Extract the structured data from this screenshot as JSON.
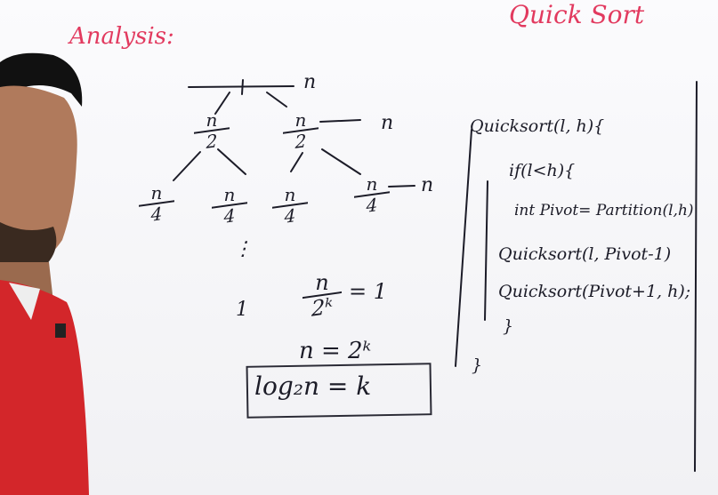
{
  "headings": {
    "analysis": "Analysis:",
    "quick_sort": "Quick Sort"
  },
  "tree": {
    "root": "n",
    "right_cost_1": "n",
    "right_cost_2": "n",
    "level1": [
      {
        "num": "n",
        "den": "2"
      },
      {
        "num": "n",
        "den": "2"
      }
    ],
    "level2": [
      {
        "num": "n",
        "den": "4"
      },
      {
        "num": "n",
        "den": "4"
      },
      {
        "num": "n",
        "den": "4"
      },
      {
        "num": "n",
        "den": "4"
      }
    ],
    "ellipsis": "⋮",
    "leaf": "1"
  },
  "equations": {
    "eq1_num": "n",
    "eq1_den": "2ᵏ",
    "eq1_rhs": "= 1",
    "eq2": "n = 2ᵏ",
    "eq3": "log₂n = k"
  },
  "code": {
    "line1": "Quicksort(l, h){",
    "line2": "if(l<h){",
    "line3": "int Pivot= Partition(l,h)",
    "line4": "Quicksort(l, Pivot-1)",
    "line5": "Quicksort(Pivot+1, h);",
    "line6": "}",
    "line7": "}"
  },
  "colors": {
    "ink": "#1c1c28",
    "marker_red": "#e23a5f",
    "shirt_red": "#d3262a"
  }
}
